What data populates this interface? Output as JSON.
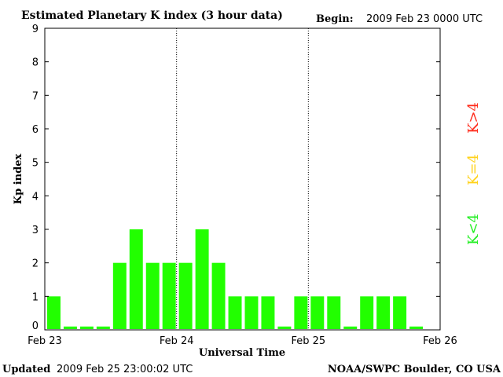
{
  "header": {
    "title": "Estimated Planetary K index (3 hour data)",
    "begin_label": "Begin:",
    "begin_value": "2009 Feb 23 0000 UTC"
  },
  "footer": {
    "updated_label": "Updated",
    "updated_value": "2009 Feb 25 23:00:02 UTC",
    "source": "NOAA/SWPC Boulder, CO USA"
  },
  "legend": [
    {
      "label": "K>4",
      "color": "#ff2a1a"
    },
    {
      "label": "K=4",
      "color": "#ffd21a"
    },
    {
      "label": "K<4",
      "color": "#22ee22"
    }
  ],
  "chart_data": {
    "type": "bar",
    "ylabel": "Kp index",
    "xlabel": "Universal Time",
    "ylim": [
      0,
      9
    ],
    "yticks": [
      "0",
      "1",
      "2",
      "3",
      "4",
      "5",
      "6",
      "7",
      "8",
      "9"
    ],
    "xticks": [
      "Feb 23",
      "Feb 24",
      "Feb 25",
      "Feb 26"
    ],
    "interval_hours": 3,
    "values": [
      1,
      0,
      0,
      0,
      2,
      3,
      2,
      2,
      2,
      3,
      2,
      1,
      1,
      1,
      0,
      1,
      1,
      1,
      0,
      1,
      1,
      1,
      0
    ],
    "bar_color": "#22ff00",
    "day_separator_style": "dotted"
  }
}
